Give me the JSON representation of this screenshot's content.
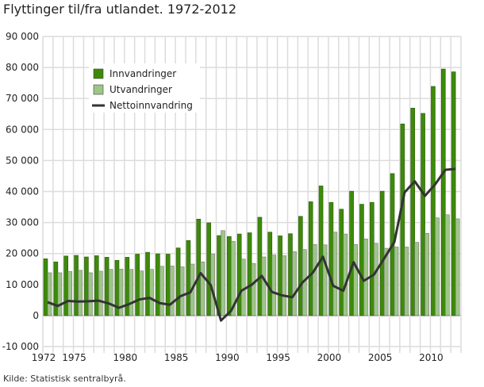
{
  "chart_data": {
    "type": "bar",
    "title": "Flyttinger til/fra utlandet. 1972-2012",
    "source": "Kilde: Statistisk sentralbyrå.",
    "xlabel": "",
    "ylabel": "",
    "ylim": [
      -10000,
      90000
    ],
    "yticks": [
      -10000,
      0,
      10000,
      20000,
      30000,
      40000,
      50000,
      60000,
      70000,
      80000,
      90000
    ],
    "ytick_labels": [
      "-10 000",
      "0",
      "10 000",
      "20 000",
      "30 000",
      "40 000",
      "50 000",
      "60 000",
      "70 000",
      "80 000",
      "90 000"
    ],
    "xtick_labels": [
      "1972",
      "1975",
      "1980",
      "1985",
      "1990",
      "1995",
      "2000",
      "2005",
      "2010"
    ],
    "grid": true,
    "legend_placement": "top-left",
    "categories": [
      1972,
      1973,
      1974,
      1975,
      1976,
      1977,
      1978,
      1979,
      1980,
      1981,
      1982,
      1983,
      1984,
      1985,
      1986,
      1987,
      1988,
      1989,
      1990,
      1991,
      1992,
      1993,
      1994,
      1995,
      1996,
      1997,
      1998,
      1999,
      2000,
      2001,
      2002,
      2003,
      2004,
      2005,
      2006,
      2007,
      2008,
      2009,
      2010,
      2011,
      2012
    ],
    "series": [
      {
        "name": "Innvandringer",
        "type": "bar",
        "color": "#3d8a0a",
        "values": [
          18300,
          17300,
          19200,
          19400,
          18900,
          19300,
          18800,
          17800,
          18800,
          19800,
          20400,
          19900,
          19800,
          21800,
          24200,
          31100,
          29900,
          25800,
          25500,
          26300,
          26700,
          31700,
          26900,
          25700,
          26400,
          32000,
          36700,
          41800,
          36500,
          34300,
          40100,
          35900,
          36500,
          40100,
          45800,
          61800,
          66900,
          65200,
          73900,
          79500,
          78600
        ]
      },
      {
        "name": "Utvandringer",
        "type": "bar",
        "color": "#9dc687",
        "values": [
          13800,
          13800,
          14200,
          14600,
          13800,
          14300,
          14900,
          15000,
          14900,
          14400,
          14900,
          15900,
          16000,
          15700,
          16600,
          17300,
          19800,
          27400,
          23900,
          18200,
          16800,
          18900,
          19500,
          19300,
          20600,
          21300,
          22900,
          22800,
          26900,
          26300,
          22900,
          24700,
          23300,
          21700,
          22100,
          22100,
          23600,
          26500,
          31500,
          32500,
          31200
        ]
      },
      {
        "name": "Nettoinnvandring",
        "type": "line",
        "color": "#333333",
        "values": [
          4300,
          3100,
          4700,
          4500,
          4600,
          4800,
          3900,
          2500,
          3700,
          5200,
          5700,
          4000,
          3500,
          6200,
          7500,
          13700,
          9800,
          -1600,
          1600,
          8000,
          9900,
          12800,
          7600,
          6500,
          5900,
          10700,
          13800,
          19000,
          9600,
          8000,
          17200,
          11200,
          13200,
          18400,
          23700,
          39700,
          43300,
          38600,
          42300,
          47000,
          47300
        ]
      }
    ]
  }
}
